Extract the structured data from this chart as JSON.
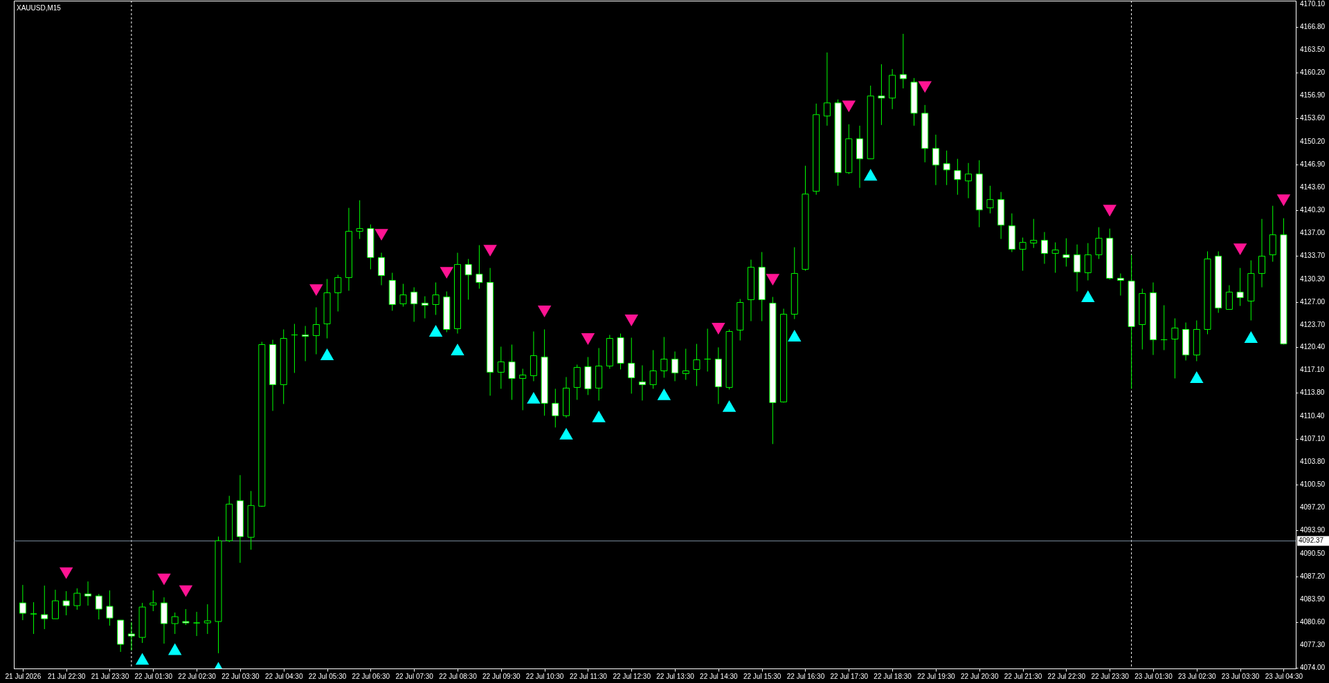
{
  "chart_data": {
    "type": "candlestick",
    "title": "XAUUSD,M15",
    "color": "#00ff00",
    "categories": [
      "21 Jul 2026",
      null,
      null,
      null,
      "21 Jul 22:30",
      null,
      null,
      null,
      "21 Jul 23:30",
      null,
      null,
      null,
      "22 Jul 01:30",
      null,
      null,
      null,
      "22 Jul 02:30",
      null,
      null,
      null,
      "22 Jul 03:30",
      null,
      null,
      null,
      "22 Jul 04:30",
      null,
      null,
      null,
      "22 Jul 05:30",
      null,
      null,
      null,
      "22 Jul 06:30",
      null,
      null,
      null,
      "22 Jul 07:30",
      null,
      null,
      null,
      "22 Jul 08:30",
      null,
      null,
      null,
      "22 Jul 09:30",
      null,
      null,
      null,
      "22 Jul 10:30",
      null,
      null,
      null,
      "22 Jul 11:30",
      null,
      null,
      null,
      "22 Jul 12:30",
      null,
      null,
      null,
      "22 Jul 13:30",
      null,
      null,
      null,
      "22 Jul 14:30",
      null,
      null,
      null,
      "22 Jul 15:30",
      null,
      null,
      null,
      "22 Jul 16:30",
      null,
      null,
      null,
      "22 Jul 17:30",
      null,
      null,
      null,
      "22 Jul 18:30",
      null,
      null,
      null,
      "22 Jul 19:30",
      null,
      null,
      null,
      "22 Jul 20:30",
      null,
      null,
      null,
      "22 Jul 21:30",
      null,
      null,
      null,
      "22 Jul 22:30",
      null,
      null,
      null,
      "22 Jul 23:30",
      null,
      null,
      null,
      "23 Jul 01:30",
      null,
      null,
      null,
      "23 Jul 02:30",
      null,
      null,
      null,
      "23 Jul 03:30",
      null,
      null,
      null,
      "23 Jul 04:30"
    ],
    "ohlc": [
      [
        4083.4,
        4086.0,
        4080.9,
        4081.9
      ],
      [
        4081.8,
        4083.5,
        4078.9,
        4081.8
      ],
      [
        4081.7,
        4085.9,
        4079.6,
        4081.1
      ],
      [
        4081.1,
        4085.3,
        4081.1,
        4083.7
      ],
      [
        4083.7,
        4085.1,
        4081.6,
        4083.0
      ],
      [
        4083.0,
        4085.5,
        4082.4,
        4084.8
      ],
      [
        4084.7,
        4086.5,
        4083.0,
        4084.4
      ],
      [
        4084.4,
        4084.7,
        4081.0,
        4082.5
      ],
      [
        4082.9,
        4085.2,
        4080.1,
        4081.2
      ],
      [
        4080.9,
        4080.9,
        4076.3,
        4077.4
      ],
      [
        4078.9,
        4080.6,
        4076.5,
        4078.6
      ],
      [
        4078.4,
        4083.4,
        4077.6,
        4082.8
      ],
      [
        4083.1,
        4085.2,
        4082.2,
        4083.4
      ],
      [
        4083.4,
        4084.2,
        4077.5,
        4080.4
      ],
      [
        4080.4,
        4082.0,
        4078.9,
        4081.4
      ],
      [
        4080.7,
        4082.5,
        4080.2,
        4080.5
      ],
      [
        4080.5,
        4082.1,
        4078.6,
        4080.5
      ],
      [
        4080.5,
        4083.2,
        4078.9,
        4080.8
      ],
      [
        4080.7,
        4093.0,
        4076.1,
        4092.4
      ],
      [
        4092.4,
        4098.9,
        4092.2,
        4097.7
      ],
      [
        4098.2,
        4101.9,
        4089.2,
        4093.0
      ],
      [
        4092.9,
        4099.6,
        4091.1,
        4097.5
      ],
      [
        4097.4,
        4121.2,
        4097.3,
        4120.8
      ],
      [
        4120.8,
        4121.5,
        4111.2,
        4115.0
      ],
      [
        4115.0,
        4123.0,
        4112.2,
        4121.7
      ],
      [
        4122.2,
        4123.8,
        4116.7,
        4122.2
      ],
      [
        4122.2,
        4123.5,
        4118.4,
        4122.0
      ],
      [
        4122.1,
        4126.2,
        4119.4,
        4123.7
      ],
      [
        4123.8,
        4130.3,
        4121.7,
        4128.3
      ],
      [
        4128.3,
        4130.9,
        4125.6,
        4130.5
      ],
      [
        4130.5,
        4140.6,
        4128.6,
        4137.2
      ],
      [
        4137.2,
        4141.7,
        4136.1,
        4137.6
      ],
      [
        4137.6,
        4138.2,
        4131.7,
        4133.4
      ],
      [
        4133.4,
        4134.1,
        4129.4,
        4130.8
      ],
      [
        4130.1,
        4131.2,
        4125.7,
        4126.6
      ],
      [
        4126.7,
        4129.6,
        4126.3,
        4128.0
      ],
      [
        4128.4,
        4129.1,
        4124.1,
        4126.7
      ],
      [
        4126.8,
        4127.8,
        4124.6,
        4126.5
      ],
      [
        4126.6,
        4129.8,
        4125.1,
        4128.0
      ],
      [
        4127.7,
        4128.5,
        4122.6,
        4123.0
      ],
      [
        4123.1,
        4134.1,
        4122.4,
        4132.4
      ],
      [
        4132.4,
        4133.2,
        4127.3,
        4130.9
      ],
      [
        4131.0,
        4135.2,
        4128.9,
        4129.8
      ],
      [
        4129.8,
        4131.9,
        4113.4,
        4116.8
      ],
      [
        4116.8,
        4120.5,
        4114.4,
        4118.3
      ],
      [
        4118.3,
        4120.8,
        4112.8,
        4115.9
      ],
      [
        4115.9,
        4117.3,
        4111.3,
        4116.4
      ],
      [
        4116.3,
        4122.7,
        4115.5,
        4119.2
      ],
      [
        4119.0,
        4123.0,
        4110.5,
        4112.3
      ],
      [
        4112.3,
        4114.4,
        4108.8,
        4110.5
      ],
      [
        4110.5,
        4116.1,
        4110.2,
        4114.5
      ],
      [
        4114.6,
        4117.9,
        4112.8,
        4117.5
      ],
      [
        4117.6,
        4119.0,
        4113.5,
        4114.4
      ],
      [
        4114.5,
        4120.3,
        4112.7,
        4117.7
      ],
      [
        4117.7,
        4122.2,
        4117.3,
        4121.7
      ],
      [
        4121.8,
        4122.4,
        4117.2,
        4118.1
      ],
      [
        4118.1,
        4121.8,
        4113.7,
        4116.0
      ],
      [
        4115.4,
        4117.8,
        4112.7,
        4115.0
      ],
      [
        4115.0,
        4120.0,
        4114.4,
        4117.0
      ],
      [
        4117.0,
        4121.9,
        4116.0,
        4118.7
      ],
      [
        4118.7,
        4119.8,
        4115.5,
        4116.7
      ],
      [
        4116.6,
        4120.2,
        4115.7,
        4117.0
      ],
      [
        4117.2,
        4120.9,
        4114.8,
        4118.6
      ],
      [
        4118.7,
        4123.1,
        4116.9,
        4118.7
      ],
      [
        4118.7,
        4120.4,
        4112.2,
        4114.7
      ],
      [
        4114.6,
        4123.0,
        4114.3,
        4122.7
      ],
      [
        4122.9,
        4127.4,
        4121.4,
        4126.9
      ],
      [
        4127.3,
        4133.1,
        4124.2,
        4132.0
      ],
      [
        4132.0,
        4134.2,
        4124.2,
        4127.3
      ],
      [
        4126.8,
        4127.7,
        4106.4,
        4112.4
      ],
      [
        4112.5,
        4126.0,
        4112.4,
        4125.2
      ],
      [
        4125.2,
        4134.9,
        4124.5,
        4131.1
      ],
      [
        4131.7,
        4146.7,
        4131.5,
        4142.6
      ],
      [
        4143.0,
        4155.7,
        4142.5,
        4154.1
      ],
      [
        4153.9,
        4163.1,
        4152.5,
        4155.8
      ],
      [
        4155.8,
        4156.3,
        4143.8,
        4145.7
      ],
      [
        4145.7,
        4152.7,
        4145.5,
        4150.6
      ],
      [
        4150.6,
        4152.5,
        4143.5,
        4147.7
      ],
      [
        4147.7,
        4158.3,
        4147.7,
        4156.8
      ],
      [
        4156.8,
        4161.4,
        4152.6,
        4156.5
      ],
      [
        4156.5,
        4160.7,
        4154.9,
        4159.8
      ],
      [
        4159.9,
        4165.8,
        4157.9,
        4159.3
      ],
      [
        4158.8,
        4159.4,
        4152.5,
        4154.3
      ],
      [
        4154.3,
        4155.5,
        4147.2,
        4149.2
      ],
      [
        4149.2,
        4151.2,
        4143.9,
        4146.8
      ],
      [
        4147.0,
        4148.9,
        4143.9,
        4146.1
      ],
      [
        4146.0,
        4147.7,
        4142.5,
        4144.7
      ],
      [
        4144.5,
        4147.1,
        4142.0,
        4145.5
      ],
      [
        4145.5,
        4147.5,
        4137.8,
        4140.3
      ],
      [
        4140.6,
        4143.8,
        4139.8,
        4141.8
      ],
      [
        4141.8,
        4142.9,
        4136.1,
        4138.1
      ],
      [
        4138.0,
        4139.8,
        4134.2,
        4134.6
      ],
      [
        4134.6,
        4136.3,
        4131.5,
        4135.6
      ],
      [
        4135.5,
        4139.0,
        4134.8,
        4135.9
      ],
      [
        4135.9,
        4137.1,
        4132.5,
        4134.0
      ],
      [
        4134.0,
        4135.6,
        4131.2,
        4134.5
      ],
      [
        4133.8,
        4136.2,
        4132.1,
        4133.4
      ],
      [
        4133.8,
        4135.3,
        4128.5,
        4131.3
      ],
      [
        4131.2,
        4135.5,
        4130.1,
        4133.8
      ],
      [
        4133.8,
        4137.8,
        4133.2,
        4136.2
      ],
      [
        4136.2,
        4137.6,
        4130.2,
        4130.4
      ],
      [
        4130.4,
        4131.1,
        4127.9,
        4130.1
      ],
      [
        4130.0,
        4133.8,
        4114.4,
        4123.4
      ],
      [
        4123.7,
        4128.9,
        4120.1,
        4128.2
      ],
      [
        4128.3,
        4129.8,
        4119.3,
        4121.5
      ],
      [
        4121.5,
        4126.5,
        4120.0,
        4121.5
      ],
      [
        4121.6,
        4124.6,
        4115.9,
        4123.2
      ],
      [
        4123.0,
        4124.0,
        4118.5,
        4119.3
      ],
      [
        4119.3,
        4124.3,
        4118.4,
        4123.0
      ],
      [
        4123.0,
        4134.3,
        4122.3,
        4133.2
      ],
      [
        4133.6,
        4134.3,
        4125.4,
        4126.1
      ],
      [
        4125.9,
        4129.4,
        4125.9,
        4128.4
      ],
      [
        4128.4,
        4131.9,
        4126.4,
        4127.6
      ],
      [
        4127.1,
        4133.0,
        4124.3,
        4131.1
      ],
      [
        4131.1,
        4139.0,
        4129.1,
        4133.6
      ],
      [
        4133.8,
        4140.9,
        4132.8,
        4136.7
      ],
      [
        4136.7,
        4139.1,
        4120.8,
        4120.9
      ]
    ],
    "series": [
      {
        "type": "scatter",
        "color": "#ff1493",
        "marker": "triangle",
        "values": [
          null,
          null,
          null,
          null,
          4087.7,
          null,
          null,
          null,
          null,
          null,
          null,
          null,
          null,
          4086.8,
          null,
          4085.1,
          null,
          null,
          null,
          null,
          null,
          null,
          null,
          null,
          null,
          null,
          null,
          4128.7,
          null,
          null,
          null,
          null,
          null,
          4136.7,
          null,
          null,
          null,
          null,
          null,
          4131.2,
          null,
          null,
          null,
          4134.4,
          null,
          null,
          null,
          null,
          4125.6,
          null,
          null,
          null,
          4121.6,
          null,
          null,
          null,
          4124.3,
          null,
          null,
          null,
          null,
          null,
          null,
          null,
          4123.1,
          null,
          null,
          null,
          null,
          4130.2,
          null,
          null,
          null,
          null,
          null,
          null,
          4155.3,
          null,
          null,
          null,
          null,
          null,
          null,
          4158.1,
          null,
          null,
          null,
          null,
          null,
          null,
          null,
          null,
          null,
          null,
          null,
          null,
          null,
          null,
          null,
          null,
          4140.2,
          null,
          null,
          null,
          null,
          null,
          null,
          null,
          null,
          null,
          null,
          null,
          4134.6,
          null,
          null,
          null,
          4141.7
        ]
      },
      {
        "type": "scatter",
        "color": "#00ffff",
        "marker": "triangle",
        "values": [
          null,
          null,
          null,
          null,
          null,
          null,
          null,
          null,
          null,
          null,
          null,
          4075.3,
          null,
          null,
          4076.7,
          null,
          null,
          null,
          4074.0,
          null,
          null,
          null,
          null,
          null,
          null,
          null,
          null,
          null,
          4119.4,
          null,
          null,
          null,
          null,
          null,
          null,
          null,
          null,
          null,
          4122.8,
          null,
          4120.1,
          null,
          null,
          null,
          null,
          null,
          null,
          4113.1,
          null,
          null,
          4107.9,
          null,
          null,
          4110.4,
          null,
          null,
          null,
          null,
          null,
          4113.6,
          null,
          null,
          null,
          null,
          null,
          4111.9,
          null,
          null,
          null,
          null,
          null,
          4122.1,
          null,
          null,
          null,
          null,
          null,
          null,
          4145.4,
          null,
          null,
          null,
          null,
          null,
          null,
          null,
          null,
          null,
          null,
          null,
          null,
          null,
          null,
          null,
          null,
          null,
          null,
          null,
          4127.8,
          null,
          null,
          null,
          null,
          null,
          null,
          null,
          null,
          null,
          4116.1,
          null,
          null,
          null,
          null,
          4121.9,
          null,
          null,
          null
        ]
      }
    ],
    "ylim": [
      4073.9,
      4170.6
    ],
    "yticks": [
      {
        "value": 4170.1,
        "label": "4170.10"
      },
      {
        "value": 4166.8,
        "label": "4166.80"
      },
      {
        "value": 4163.5,
        "label": "4163.50"
      },
      {
        "value": 4160.2,
        "label": "4160.20"
      },
      {
        "value": 4156.9,
        "label": "4156.90"
      },
      {
        "value": 4153.6,
        "label": "4153.60"
      },
      {
        "value": 4150.2,
        "label": "4150.20"
      },
      {
        "value": 4146.9,
        "label": "4146.90"
      },
      {
        "value": 4143.6,
        "label": "4143.60"
      },
      {
        "value": 4140.3,
        "label": "4140.30"
      },
      {
        "value": 4137,
        "label": "4137.00"
      },
      {
        "value": 4133.7,
        "label": "4133.70"
      },
      {
        "value": 4130.3,
        "label": "4130.30"
      },
      {
        "value": 4127,
        "label": "4127.00"
      },
      {
        "value": 4123.7,
        "label": "4123.70"
      },
      {
        "value": 4120.4,
        "label": "4120.40"
      },
      {
        "value": 4117.1,
        "label": "4117.10"
      },
      {
        "value": 4113.8,
        "label": "4113.80"
      },
      {
        "value": 4110.4,
        "label": "4110.40"
      },
      {
        "value": 4107.1,
        "label": "4107.10"
      },
      {
        "value": 4103.8,
        "label": "4103.80"
      },
      {
        "value": 4100.5,
        "label": "4100.50"
      },
      {
        "value": 4097.2,
        "label": "4097.20"
      },
      {
        "value": 4093.9,
        "label": "4093.90"
      },
      {
        "value": 4090.5,
        "label": "4090.50"
      },
      {
        "value": 4087.2,
        "label": "4087.20"
      },
      {
        "value": 4083.9,
        "label": "4083.90"
      },
      {
        "value": 4080.6,
        "label": "4080.60"
      },
      {
        "value": 4077.3,
        "label": "4077.30"
      },
      {
        "value": 4074,
        "label": "4074.00"
      }
    ],
    "ref_lines": [
      {
        "axis": "y",
        "value": 4092.37,
        "label": "4092.37",
        "color": "#778899"
      }
    ]
  }
}
